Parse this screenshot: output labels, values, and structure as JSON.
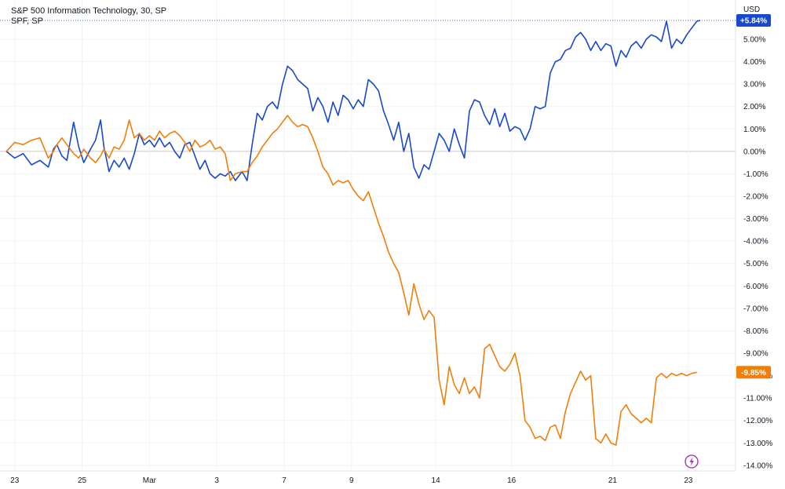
{
  "chart_data": {
    "type": "line",
    "currency_label": "USD",
    "series": [
      {
        "name": "S&P 500 Information Technology, 30, SP",
        "color": "#1848cc",
        "last_label": "+5.84%",
        "values": [
          [
            0.0,
            0.0
          ],
          [
            0.5,
            -0.3
          ],
          [
            1.0,
            -0.1
          ],
          [
            1.5,
            -0.6
          ],
          [
            2.0,
            -0.4
          ],
          [
            2.5,
            -0.7
          ],
          [
            2.8,
            0.1
          ],
          [
            3.0,
            0.3
          ],
          [
            3.3,
            -0.2
          ],
          [
            3.6,
            -0.4
          ],
          [
            4.0,
            1.3
          ],
          [
            4.3,
            0.2
          ],
          [
            4.6,
            -0.5
          ],
          [
            5.0,
            0.1
          ],
          [
            5.3,
            0.5
          ],
          [
            5.6,
            1.4
          ],
          [
            5.8,
            0.2
          ],
          [
            6.1,
            -0.9
          ],
          [
            6.4,
            -0.4
          ],
          [
            6.7,
            -0.7
          ],
          [
            7.0,
            -0.3
          ],
          [
            7.3,
            -0.8
          ],
          [
            7.6,
            -0.1
          ],
          [
            7.9,
            0.8
          ],
          [
            8.2,
            0.3
          ],
          [
            8.5,
            0.5
          ],
          [
            8.8,
            0.2
          ],
          [
            9.1,
            0.6
          ],
          [
            9.4,
            0.2
          ],
          [
            9.7,
            0.4
          ],
          [
            10.0,
            0.0
          ],
          [
            10.3,
            -0.3
          ],
          [
            10.6,
            0.3
          ],
          [
            10.9,
            0.4
          ],
          [
            11.2,
            -0.2
          ],
          [
            11.5,
            -0.8
          ],
          [
            11.8,
            -0.4
          ],
          [
            12.1,
            -1.0
          ],
          [
            12.4,
            -1.2
          ],
          [
            12.7,
            -1.0
          ],
          [
            13.0,
            -1.1
          ],
          [
            13.3,
            -0.9
          ],
          [
            13.6,
            -1.3
          ],
          [
            14.0,
            -0.9
          ],
          [
            14.3,
            -1.3
          ],
          [
            14.6,
            0.3
          ],
          [
            14.9,
            1.7
          ],
          [
            15.2,
            1.4
          ],
          [
            15.5,
            2.0
          ],
          [
            15.8,
            2.2
          ],
          [
            16.1,
            1.9
          ],
          [
            16.4,
            3.0
          ],
          [
            16.7,
            3.8
          ],
          [
            17.0,
            3.6
          ],
          [
            17.3,
            3.2
          ],
          [
            17.6,
            3.0
          ],
          [
            17.9,
            2.8
          ],
          [
            18.2,
            1.8
          ],
          [
            18.5,
            2.4
          ],
          [
            18.8,
            2.0
          ],
          [
            19.1,
            1.3
          ],
          [
            19.4,
            2.2
          ],
          [
            19.7,
            1.6
          ],
          [
            20.0,
            2.5
          ],
          [
            20.3,
            2.3
          ],
          [
            20.6,
            1.9
          ],
          [
            20.9,
            2.3
          ],
          [
            21.2,
            2.0
          ],
          [
            21.5,
            3.2
          ],
          [
            21.8,
            3.0
          ],
          [
            22.1,
            2.7
          ],
          [
            22.4,
            1.8
          ],
          [
            22.7,
            1.2
          ],
          [
            23.0,
            0.5
          ],
          [
            23.3,
            1.3
          ],
          [
            23.6,
            0.0
          ],
          [
            23.9,
            0.8
          ],
          [
            24.2,
            -0.7
          ],
          [
            24.5,
            -1.2
          ],
          [
            24.8,
            -0.6
          ],
          [
            25.1,
            -0.8
          ],
          [
            25.4,
            0.0
          ],
          [
            25.7,
            0.8
          ],
          [
            26.0,
            0.5
          ],
          [
            26.3,
            0.0
          ],
          [
            26.6,
            1.0
          ],
          [
            26.9,
            0.3
          ],
          [
            27.2,
            -0.3
          ],
          [
            27.5,
            1.8
          ],
          [
            27.8,
            2.3
          ],
          [
            28.1,
            2.2
          ],
          [
            28.4,
            1.6
          ],
          [
            28.7,
            1.2
          ],
          [
            29.0,
            1.9
          ],
          [
            29.3,
            1.1
          ],
          [
            29.6,
            1.7
          ],
          [
            29.9,
            0.9
          ],
          [
            30.2,
            1.1
          ],
          [
            30.5,
            1.0
          ],
          [
            30.8,
            0.5
          ],
          [
            31.1,
            1.0
          ],
          [
            31.4,
            2.0
          ],
          [
            31.7,
            1.9
          ],
          [
            32.0,
            2.0
          ],
          [
            32.3,
            3.5
          ],
          [
            32.6,
            4.0
          ],
          [
            32.9,
            4.1
          ],
          [
            33.2,
            4.5
          ],
          [
            33.5,
            4.6
          ],
          [
            33.8,
            5.1
          ],
          [
            34.1,
            5.3
          ],
          [
            34.4,
            5.0
          ],
          [
            34.7,
            4.5
          ],
          [
            35.0,
            4.9
          ],
          [
            35.3,
            4.5
          ],
          [
            35.6,
            4.8
          ],
          [
            35.9,
            4.7
          ],
          [
            36.2,
            3.8
          ],
          [
            36.5,
            4.5
          ],
          [
            36.8,
            4.2
          ],
          [
            37.1,
            4.7
          ],
          [
            37.4,
            4.9
          ],
          [
            37.7,
            4.6
          ],
          [
            38.0,
            5.0
          ],
          [
            38.3,
            5.2
          ],
          [
            38.6,
            5.1
          ],
          [
            38.9,
            4.9
          ],
          [
            39.2,
            5.8
          ],
          [
            39.5,
            4.6
          ],
          [
            39.8,
            5.0
          ],
          [
            40.1,
            4.8
          ],
          [
            40.4,
            5.2
          ],
          [
            40.7,
            5.5
          ],
          [
            41.0,
            5.8
          ],
          [
            41.2,
            5.84
          ]
        ]
      },
      {
        "name": "SPF, SP",
        "color": "#f07f09",
        "last_label": "-9.85%",
        "values": [
          [
            0.0,
            0.0
          ],
          [
            0.5,
            0.4
          ],
          [
            1.0,
            0.3
          ],
          [
            1.5,
            0.5
          ],
          [
            2.0,
            0.6
          ],
          [
            2.5,
            -0.3
          ],
          [
            2.8,
            0.0
          ],
          [
            3.0,
            0.3
          ],
          [
            3.3,
            0.6
          ],
          [
            3.6,
            0.3
          ],
          [
            4.0,
            -0.1
          ],
          [
            4.3,
            -0.3
          ],
          [
            4.6,
            0.1
          ],
          [
            5.0,
            -0.3
          ],
          [
            5.3,
            -0.5
          ],
          [
            5.6,
            -0.2
          ],
          [
            5.8,
            0.1
          ],
          [
            6.1,
            -0.3
          ],
          [
            6.4,
            0.2
          ],
          [
            6.7,
            0.1
          ],
          [
            7.0,
            0.5
          ],
          [
            7.3,
            1.4
          ],
          [
            7.6,
            0.6
          ],
          [
            7.9,
            0.8
          ],
          [
            8.2,
            0.5
          ],
          [
            8.5,
            0.7
          ],
          [
            8.8,
            0.5
          ],
          [
            9.1,
            0.9
          ],
          [
            9.4,
            0.6
          ],
          [
            9.7,
            0.8
          ],
          [
            10.0,
            0.9
          ],
          [
            10.3,
            0.7
          ],
          [
            10.6,
            0.4
          ],
          [
            10.9,
            0.0
          ],
          [
            11.2,
            0.5
          ],
          [
            11.5,
            0.2
          ],
          [
            11.8,
            0.3
          ],
          [
            12.1,
            0.5
          ],
          [
            12.4,
            0.1
          ],
          [
            12.7,
            0.2
          ],
          [
            13.0,
            -0.1
          ],
          [
            13.3,
            -1.3
          ],
          [
            13.6,
            -1.0
          ],
          [
            14.0,
            -0.9
          ],
          [
            14.3,
            -0.9
          ],
          [
            14.6,
            -0.5
          ],
          [
            14.9,
            -0.2
          ],
          [
            15.2,
            0.2
          ],
          [
            15.5,
            0.5
          ],
          [
            15.8,
            0.8
          ],
          [
            16.1,
            1.0
          ],
          [
            16.4,
            1.3
          ],
          [
            16.7,
            1.6
          ],
          [
            17.0,
            1.3
          ],
          [
            17.3,
            1.1
          ],
          [
            17.6,
            1.2
          ],
          [
            17.9,
            1.1
          ],
          [
            18.2,
            0.6
          ],
          [
            18.5,
            0.0
          ],
          [
            18.8,
            -0.7
          ],
          [
            19.1,
            -1.0
          ],
          [
            19.4,
            -1.5
          ],
          [
            19.7,
            -1.3
          ],
          [
            20.0,
            -1.4
          ],
          [
            20.3,
            -1.3
          ],
          [
            20.6,
            -1.7
          ],
          [
            20.9,
            -2.0
          ],
          [
            21.2,
            -2.2
          ],
          [
            21.5,
            -1.8
          ],
          [
            21.8,
            -2.5
          ],
          [
            22.1,
            -3.2
          ],
          [
            22.4,
            -3.8
          ],
          [
            22.7,
            -4.5
          ],
          [
            23.0,
            -5.0
          ],
          [
            23.3,
            -5.4
          ],
          [
            23.6,
            -6.3
          ],
          [
            23.9,
            -7.3
          ],
          [
            24.2,
            -5.9
          ],
          [
            24.5,
            -6.8
          ],
          [
            24.8,
            -7.5
          ],
          [
            25.1,
            -7.1
          ],
          [
            25.4,
            -7.4
          ],
          [
            25.7,
            -10.2
          ],
          [
            26.0,
            -11.3
          ],
          [
            26.3,
            -9.6
          ],
          [
            26.6,
            -10.4
          ],
          [
            26.9,
            -10.8
          ],
          [
            27.2,
            -10.1
          ],
          [
            27.5,
            -10.8
          ],
          [
            27.8,
            -10.5
          ],
          [
            28.1,
            -11.0
          ],
          [
            28.4,
            -8.8
          ],
          [
            28.7,
            -8.6
          ],
          [
            29.0,
            -9.1
          ],
          [
            29.3,
            -9.6
          ],
          [
            29.6,
            -9.8
          ],
          [
            29.9,
            -9.5
          ],
          [
            30.2,
            -9.0
          ],
          [
            30.5,
            -10.0
          ],
          [
            30.8,
            -12.0
          ],
          [
            31.1,
            -12.3
          ],
          [
            31.4,
            -12.8
          ],
          [
            31.7,
            -12.7
          ],
          [
            32.0,
            -12.9
          ],
          [
            32.3,
            -12.3
          ],
          [
            32.6,
            -12.2
          ],
          [
            32.9,
            -12.8
          ],
          [
            33.2,
            -11.6
          ],
          [
            33.5,
            -10.8
          ],
          [
            33.8,
            -10.3
          ],
          [
            34.1,
            -9.8
          ],
          [
            34.4,
            -10.2
          ],
          [
            34.7,
            -10.0
          ],
          [
            35.0,
            -12.8
          ],
          [
            35.3,
            -13.0
          ],
          [
            35.6,
            -12.6
          ],
          [
            35.9,
            -13.0
          ],
          [
            36.2,
            -13.1
          ],
          [
            36.5,
            -11.6
          ],
          [
            36.8,
            -11.3
          ],
          [
            37.1,
            -11.7
          ],
          [
            37.4,
            -11.9
          ],
          [
            37.7,
            -12.1
          ],
          [
            38.0,
            -11.9
          ],
          [
            38.3,
            -12.1
          ],
          [
            38.6,
            -10.1
          ],
          [
            38.9,
            -9.9
          ],
          [
            39.2,
            -10.1
          ],
          [
            39.5,
            -9.9
          ],
          [
            39.8,
            -10.0
          ],
          [
            40.1,
            -9.9
          ],
          [
            40.4,
            -10.0
          ],
          [
            40.7,
            -9.9
          ],
          [
            41.0,
            -9.85
          ]
        ]
      }
    ],
    "x_ticks": [
      {
        "label": "23",
        "x": 0.5
      },
      {
        "label": "25",
        "x": 4.5
      },
      {
        "label": "Mar",
        "x": 8.5
      },
      {
        "label": "3",
        "x": 12.5
      },
      {
        "label": "7",
        "x": 16.5
      },
      {
        "label": "9",
        "x": 20.5
      },
      {
        "label": "14",
        "x": 25.5
      },
      {
        "label": "16",
        "x": 30.0
      },
      {
        "label": "21",
        "x": 36.0
      },
      {
        "label": "23",
        "x": 40.5
      }
    ],
    "y_ticks": [
      "5.00%",
      "4.00%",
      "3.00%",
      "2.00%",
      "1.00%",
      "0.00%",
      "-1.00%",
      "-2.00%",
      "-3.00%",
      "-4.00%",
      "-5.00%",
      "-6.00%",
      "-7.00%",
      "-8.00%",
      "-9.00%",
      "-10.00%",
      "-11.00%",
      "-12.00%",
      "-13.00%",
      "-14.00%"
    ],
    "y_tick_values": [
      5,
      4,
      3,
      2,
      1,
      0,
      -1,
      -2,
      -3,
      -4,
      -5,
      -6,
      -7,
      -8,
      -9,
      -10,
      -11,
      -12,
      -13,
      -14
    ],
    "ylim": [
      -14.25,
      6.75
    ],
    "xlim": [
      0,
      43.3
    ]
  }
}
